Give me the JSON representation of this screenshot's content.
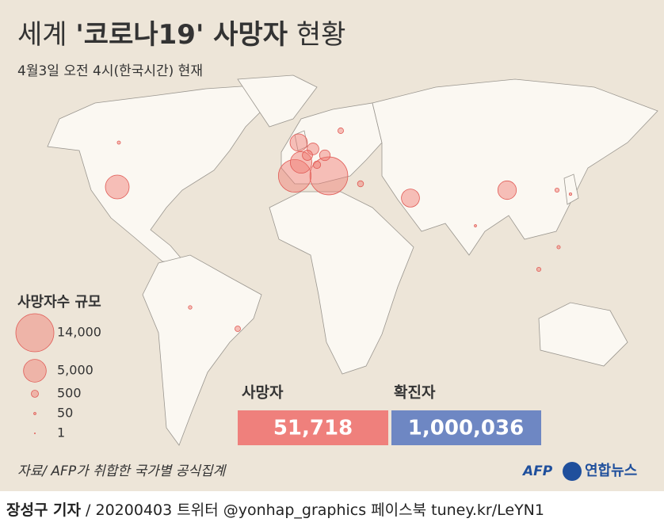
{
  "header": {
    "title": {
      "prefix": "세계 ",
      "emphasis": "'코로나19' 사망자",
      "suffix": " 현황"
    },
    "subtitle": "4월3일 오전 4시(한국시간) 현재"
  },
  "legend": {
    "title": "사망자수 규모",
    "items": [
      {
        "value": 14000,
        "label": "14,000"
      },
      {
        "value": 5000,
        "label": "5,000"
      },
      {
        "value": 500,
        "label": "500"
      },
      {
        "value": 50,
        "label": "50"
      },
      1
    ]
  },
  "bubbles": [
    13915,
    10348,
    5470,
    4503,
    2921,
    3160,
    3318,
    1339,
    1107,
    1011,
    536,
    356,
    308,
    299,
    169,
    100,
    63,
    170,
    107,
    50,
    120
  ],
  "stats": [
    {
      "label": "사망자",
      "value": "51,718"
    },
    {
      "label": "확진자",
      "value": "1,000,036"
    }
  ],
  "source": "자료/ AFP가 취합한 국가별 공식집계",
  "logos": {
    "afp": "AFP",
    "agency": "연합뉴스"
  },
  "footer": {
    "byline": "장성구 기자",
    "rest": " / 20200403  트위터 @yonhap_graphics  페이스북 tuney.kr/LeYN1"
  }
}
